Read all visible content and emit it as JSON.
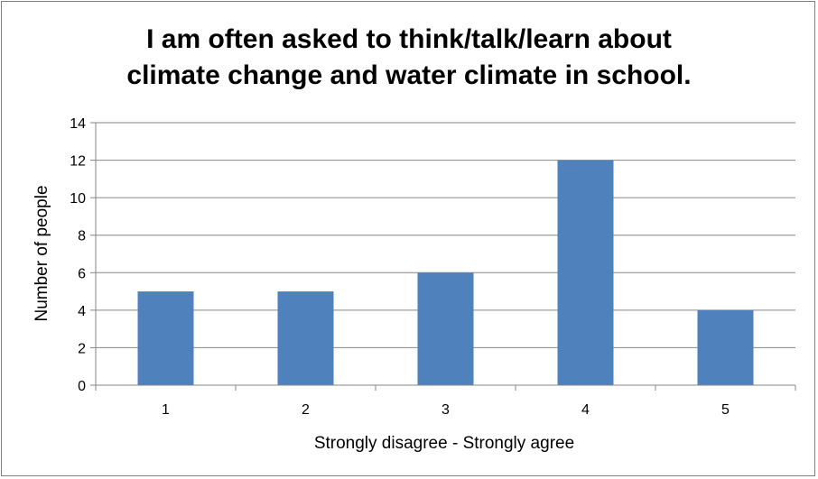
{
  "chart_data": {
    "type": "bar",
    "title": "I am often asked to think/talk/learn about\nclimate change and water climate in school.",
    "xlabel": "Strongly disagree - Strongly agree",
    "ylabel": "Number of people",
    "categories": [
      "1",
      "2",
      "3",
      "4",
      "5"
    ],
    "values": [
      5,
      5,
      6,
      12,
      4
    ],
    "ylim": [
      0,
      14
    ],
    "yticks": [
      0,
      2,
      4,
      6,
      8,
      10,
      12,
      14
    ],
    "grid": true,
    "legend": "none",
    "bar_color": "#4F81BD"
  }
}
